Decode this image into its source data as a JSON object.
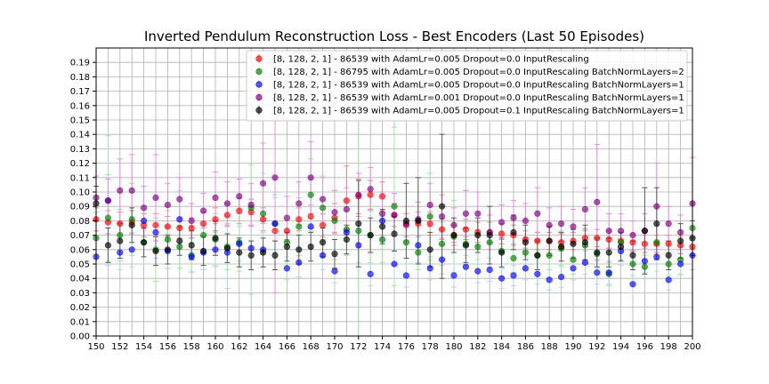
{
  "chart_data": {
    "type": "scatter",
    "title": "Inverted Pendulum Reconstruction Loss - Best Encoders (Last 50 Episodes)",
    "xlabel": "",
    "ylabel": "",
    "xlim": [
      150,
      200
    ],
    "ylim": [
      0.0,
      0.2
    ],
    "x_ticks": [
      150,
      152,
      154,
      156,
      158,
      160,
      162,
      164,
      166,
      168,
      170,
      172,
      174,
      176,
      178,
      180,
      182,
      184,
      186,
      188,
      190,
      192,
      194,
      196,
      198,
      200
    ],
    "y_ticks": [
      0.0,
      0.01,
      0.02,
      0.03,
      0.04,
      0.05,
      0.06,
      0.07,
      0.08,
      0.09,
      0.1,
      0.11,
      0.12,
      0.13,
      0.14,
      0.15,
      0.16,
      0.17,
      0.18,
      0.19
    ],
    "y_tick_labels": [
      "0.00",
      "0.01",
      "0.02",
      "0.03",
      "0.04",
      "0.05",
      "0.06",
      "0.07",
      "0.08",
      "0.09",
      "0.10",
      "0.11",
      "0.12",
      "0.13",
      "0.14",
      "0.15",
      "0.16",
      "0.17",
      "0.18",
      "0.19"
    ],
    "grid": true,
    "legend_position": "top-right",
    "x": [
      150,
      151,
      152,
      153,
      154,
      155,
      156,
      157,
      158,
      159,
      160,
      161,
      162,
      163,
      164,
      165,
      166,
      167,
      168,
      169,
      170,
      171,
      172,
      173,
      174,
      175,
      176,
      177,
      178,
      179,
      180,
      181,
      182,
      183,
      184,
      185,
      186,
      187,
      188,
      189,
      190,
      191,
      192,
      193,
      194,
      195,
      196,
      197,
      198,
      199,
      200
    ],
    "series": [
      {
        "name": "[8, 128, 2, 1] - 86539 with AdamLr=0.005 Dropout=0.0 InputRescaling",
        "color": "#ff0000",
        "bar_color": "#f08080",
        "values": [
          0.081,
          0.079,
          0.078,
          0.079,
          0.077,
          0.077,
          0.076,
          0.075,
          0.075,
          0.078,
          0.081,
          0.084,
          0.087,
          0.086,
          0.081,
          0.073,
          0.073,
          0.081,
          0.083,
          0.077,
          0.082,
          0.094,
          0.097,
          0.098,
          0.097,
          0.084,
          0.077,
          0.078,
          0.078,
          0.074,
          0.07,
          0.074,
          0.072,
          0.072,
          0.071,
          0.07,
          0.067,
          0.066,
          0.066,
          0.065,
          0.066,
          0.068,
          0.068,
          0.067,
          0.066,
          0.065,
          0.064,
          0.064,
          0.064,
          0.063,
          0.062
        ],
        "errors": [
          0.008,
          0.008,
          0.008,
          0.008,
          0.008,
          0.008,
          0.007,
          0.007,
          0.007,
          0.008,
          0.008,
          0.008,
          0.009,
          0.009,
          0.008,
          0.007,
          0.007,
          0.008,
          0.008,
          0.008,
          0.01,
          0.024,
          0.012,
          0.01,
          0.01,
          0.008,
          0.008,
          0.008,
          0.008,
          0.007,
          0.007,
          0.007,
          0.007,
          0.007,
          0.007,
          0.007,
          0.006,
          0.006,
          0.006,
          0.006,
          0.006,
          0.006,
          0.006,
          0.006,
          0.006,
          0.006,
          0.006,
          0.006,
          0.006,
          0.006,
          0.006
        ]
      },
      {
        "name": "[8, 128, 2, 1] - 86795 with AdamLr=0.005 Dropout=0.0 InputRescaling BatchNormLayers=2",
        "color": "#008000",
        "bar_color": "#90ee90",
        "values": [
          0.068,
          0.082,
          0.07,
          0.081,
          0.065,
          0.06,
          0.067,
          0.062,
          0.056,
          0.07,
          0.067,
          0.062,
          0.065,
          0.089,
          0.085,
          0.078,
          0.065,
          0.076,
          0.098,
          0.089,
          0.08,
          0.074,
          0.073,
          0.07,
          0.067,
          0.09,
          0.065,
          0.058,
          0.083,
          0.064,
          0.069,
          0.064,
          0.062,
          0.065,
          0.059,
          0.054,
          0.058,
          0.056,
          0.056,
          0.061,
          0.053,
          0.063,
          0.057,
          0.043,
          0.065,
          0.05,
          0.048,
          0.065,
          0.05,
          0.053,
          0.075
        ],
        "errors": [
          0.018,
          0.03,
          0.018,
          0.025,
          0.015,
          0.022,
          0.02,
          0.015,
          0.012,
          0.02,
          0.018,
          0.016,
          0.02,
          0.03,
          0.028,
          0.02,
          0.015,
          0.02,
          0.025,
          0.022,
          0.02,
          0.018,
          0.078,
          0.02,
          0.016,
          0.055,
          0.015,
          0.012,
          0.03,
          0.015,
          0.025,
          0.015,
          0.012,
          0.015,
          0.012,
          0.01,
          0.012,
          0.01,
          0.01,
          0.012,
          0.01,
          0.012,
          0.01,
          0.008,
          0.012,
          0.008,
          0.008,
          0.012,
          0.008,
          0.01,
          0.015
        ]
      },
      {
        "name": "[8, 128, 2, 1] - 86539 with AdamLr=0.005 Dropout=0.0 InputRescaling BatchNormLayers=1",
        "color": "#0000ff",
        "bar_color": "#add8e6",
        "values": [
          0.055,
          0.094,
          0.058,
          0.06,
          0.08,
          0.072,
          0.059,
          0.081,
          0.055,
          0.058,
          0.06,
          0.058,
          0.064,
          0.061,
          0.06,
          0.078,
          0.047,
          0.051,
          0.076,
          0.056,
          0.045,
          0.072,
          0.063,
          0.043,
          0.08,
          0.05,
          0.042,
          0.063,
          0.047,
          0.053,
          0.042,
          0.048,
          0.045,
          0.046,
          0.04,
          0.042,
          0.047,
          0.043,
          0.039,
          0.041,
          0.047,
          0.051,
          0.044,
          0.044,
          0.059,
          0.036,
          0.052,
          0.055,
          0.039,
          0.05,
          0.056
        ],
        "errors": [
          0.015,
          0.045,
          0.012,
          0.012,
          0.02,
          0.018,
          0.012,
          0.02,
          0.01,
          0.012,
          0.012,
          0.025,
          0.012,
          0.032,
          0.012,
          0.018,
          0.008,
          0.01,
          0.015,
          0.01,
          0.008,
          0.015,
          0.012,
          0.008,
          0.015,
          0.01,
          0.008,
          0.012,
          0.008,
          0.01,
          0.008,
          0.008,
          0.008,
          0.008,
          0.007,
          0.007,
          0.008,
          0.007,
          0.007,
          0.007,
          0.008,
          0.008,
          0.008,
          0.008,
          0.01,
          0.006,
          0.008,
          0.01,
          0.007,
          0.008,
          0.01
        ]
      },
      {
        "name": "[8, 128, 2, 1] - 86539 with AdamLr=0.001 Dropout=0.0 InputRescaling BatchNormLayers=1",
        "color": "#800080",
        "bar_color": "#ee82ee",
        "values": [
          0.096,
          0.094,
          0.101,
          0.101,
          0.089,
          0.096,
          0.091,
          0.095,
          0.08,
          0.087,
          0.096,
          0.092,
          0.097,
          0.091,
          0.106,
          0.11,
          0.082,
          0.092,
          0.11,
          0.095,
          0.086,
          0.088,
          0.098,
          0.102,
          0.085,
          0.084,
          0.078,
          0.081,
          0.091,
          0.083,
          0.077,
          0.085,
          0.085,
          0.072,
          0.079,
          0.082,
          0.08,
          0.085,
          0.077,
          0.078,
          0.076,
          0.088,
          0.093,
          0.073,
          0.073,
          0.07,
          0.073,
          0.09,
          0.078,
          0.072,
          0.092
        ],
        "errors": [
          0.015,
          0.015,
          0.022,
          0.025,
          0.015,
          0.03,
          0.015,
          0.015,
          0.012,
          0.012,
          0.018,
          0.015,
          0.012,
          0.015,
          0.028,
          0.08,
          0.015,
          0.015,
          0.025,
          0.015,
          0.015,
          0.015,
          0.015,
          0.015,
          0.015,
          0.015,
          0.012,
          0.012,
          0.015,
          0.015,
          0.012,
          0.016,
          0.015,
          0.012,
          0.012,
          0.012,
          0.012,
          0.018,
          0.012,
          0.012,
          0.012,
          0.015,
          0.04,
          0.012,
          0.012,
          0.01,
          0.012,
          0.03,
          0.012,
          0.012,
          0.032
        ]
      },
      {
        "name": "[8, 128, 2, 1] - 86539 with AdamLr=0.005 Dropout=0.1 InputRescaling BatchNormLayers=1",
        "color": "#000000",
        "bar_color": "#555555",
        "values": [
          0.092,
          0.063,
          0.066,
          0.077,
          0.065,
          0.059,
          0.06,
          0.066,
          0.063,
          0.059,
          0.068,
          0.061,
          0.058,
          0.056,
          0.058,
          0.056,
          0.062,
          0.06,
          0.062,
          0.065,
          0.057,
          0.067,
          0.078,
          0.07,
          0.076,
          0.071,
          0.08,
          0.08,
          0.06,
          0.09,
          0.07,
          0.063,
          0.07,
          0.07,
          0.058,
          0.072,
          0.065,
          0.056,
          0.066,
          0.062,
          0.064,
          0.065,
          0.058,
          0.058,
          0.062,
          0.056,
          0.073,
          0.078,
          0.056,
          0.066,
          0.068
        ],
        "errors": [
          0.012,
          0.012,
          0.012,
          0.012,
          0.01,
          0.01,
          0.01,
          0.01,
          0.01,
          0.01,
          0.012,
          0.01,
          0.01,
          0.01,
          0.01,
          0.01,
          0.01,
          0.01,
          0.01,
          0.01,
          0.01,
          0.01,
          0.03,
          0.012,
          0.012,
          0.012,
          0.026,
          0.03,
          0.012,
          0.05,
          0.012,
          0.012,
          0.012,
          0.02,
          0.01,
          0.012,
          0.012,
          0.01,
          0.01,
          0.01,
          0.01,
          0.012,
          0.01,
          0.01,
          0.01,
          0.01,
          0.03,
          0.025,
          0.01,
          0.012,
          0.012
        ]
      }
    ]
  }
}
